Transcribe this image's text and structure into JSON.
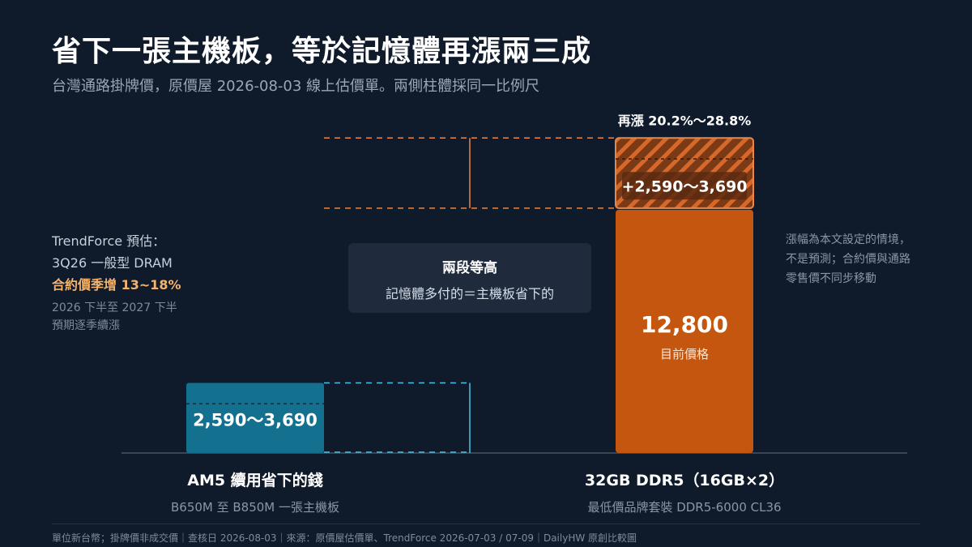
{
  "header": {
    "title": "省下一張主機板，等於記憶體再漲兩三成",
    "subtitle": "台灣通路掛牌價，原價屋 2026-08-03 線上估價單。兩側柱體採同一比例尺"
  },
  "left_note": {
    "line1": "TrendForce 預估：",
    "line2": "3Q26 一般型 DRAM",
    "line3": "合約價季增 13~18%",
    "line4": "2026 下半至 2027 下半",
    "line5": "預期逐季續漲"
  },
  "center_box": {
    "title": "兩段等高",
    "text": "記憶體多付的＝主機板省下的"
  },
  "right_note": {
    "line1": "漲幅為本文設定的情境，",
    "line2": "不是預測；合約價與通路",
    "line3": "零售價不同步移動"
  },
  "chart_data": {
    "type": "bar",
    "categories": [
      "AM5 續用省下的錢",
      "32GB DDR5（16GB×2）"
    ],
    "category_sublabels": [
      "B650M 至 B850M 一張主機板",
      "最低價品牌套裝 DDR5-6000 CL36"
    ],
    "savings": {
      "min": 2590,
      "max": 3690,
      "label": "2,590～3,690"
    },
    "ddr5": {
      "current": 12800,
      "current_label": "12,800",
      "current_caption": "目前價格",
      "increase_min": 2590,
      "increase_max": 3690,
      "increase_label": "+2,590～3,690",
      "percent_label": "再漲 20.2%～28.8%"
    },
    "colors": {
      "savings": "#13708f",
      "ddr5": "#c4560f",
      "increase_fill": "#7a3a15",
      "increase_stripe": "#d8672a",
      "dash_savings": "#4cc3e6",
      "dash_increase": "#e8874a",
      "axis": "#3a4658"
    }
  },
  "footer": {
    "text": "單位新台幣；掛牌價非成交價｜查核日 2026-08-03｜來源：原價屋估價單、TrendForce 2026-07-03 / 07-09｜DailyHW 原創比較圖"
  }
}
